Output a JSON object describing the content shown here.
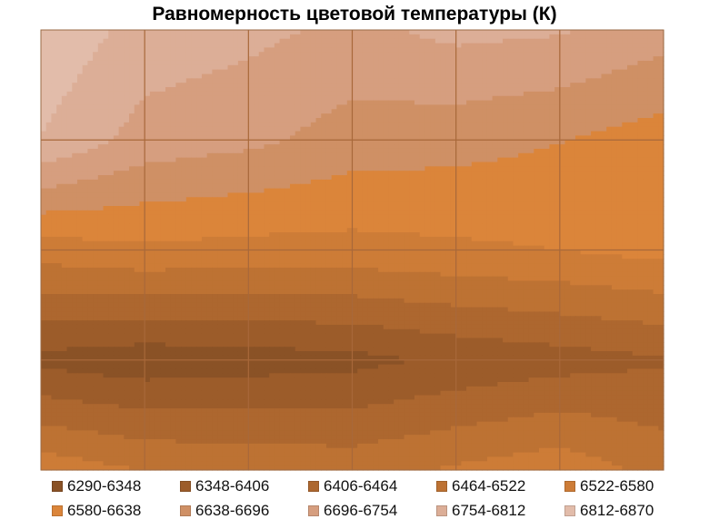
{
  "chart_data": {
    "type": "contour",
    "title": "Равномерность цветовой температуры (К)",
    "xlabel": "",
    "ylabel": "",
    "grid": true,
    "grid_columns": 6,
    "grid_rows": 4,
    "legend_position": "bottom",
    "legend": [
      {
        "label": "6290-6348",
        "color": "#8a5226"
      },
      {
        "label": "6348-6406",
        "color": "#9c5c2a"
      },
      {
        "label": "6406-6464",
        "color": "#ad672f"
      },
      {
        "label": "6464-6522",
        "color": "#bd7233"
      },
      {
        "label": "6522-6580",
        "color": "#cd7c37"
      },
      {
        "label": "6580-6638",
        "color": "#db853a"
      },
      {
        "label": "6638-6696",
        "color": "#cf9065"
      },
      {
        "label": "6696-6754",
        "color": "#d69e7f"
      },
      {
        "label": "6754-6812",
        "color": "#dcae97"
      },
      {
        "label": "6812-6870",
        "color": "#e2bcaa"
      }
    ],
    "values": [
      [
        6860,
        6790,
        6770,
        6740,
        6770,
        6760,
        6720
      ],
      [
        6810,
        6730,
        6710,
        6670,
        6660,
        6640,
        6610
      ],
      [
        6550,
        6570,
        6560,
        6560,
        6570,
        6580,
        6600
      ],
      [
        6330,
        6310,
        6320,
        6330,
        6360,
        6380,
        6400
      ],
      [
        6560,
        6520,
        6510,
        6500,
        6530,
        6560,
        6500
      ]
    ]
  }
}
